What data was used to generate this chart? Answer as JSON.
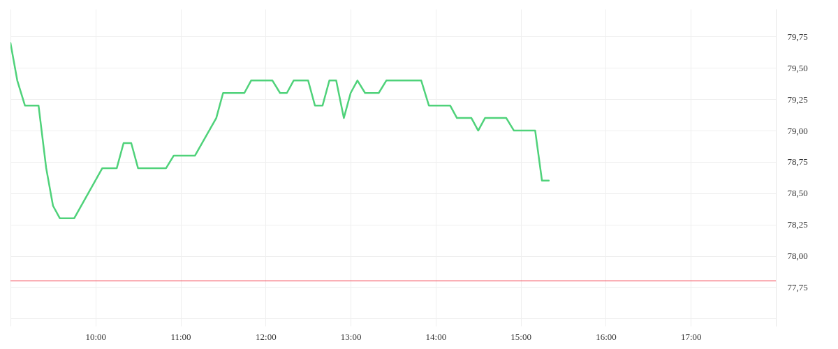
{
  "chart_data": {
    "type": "line",
    "x": [
      9.0,
      9.08,
      9.17,
      9.33,
      9.42,
      9.5,
      9.58,
      9.75,
      10.08,
      10.25,
      10.33,
      10.42,
      10.5,
      10.83,
      10.92,
      11.17,
      11.42,
      11.5,
      11.75,
      11.83,
      12.08,
      12.17,
      12.25,
      12.33,
      12.5,
      12.58,
      12.67,
      12.75,
      12.83,
      12.92,
      13.0,
      13.08,
      13.17,
      13.33,
      13.42,
      13.83,
      13.92,
      14.17,
      14.25,
      14.42,
      14.5,
      14.58,
      14.83,
      14.92,
      15.17,
      15.25,
      15.33
    ],
    "series": [
      {
        "color": "#4fd27a",
        "values": [
          79.7,
          79.4,
          79.2,
          79.2,
          78.7,
          78.4,
          78.3,
          78.3,
          78.7,
          78.7,
          78.9,
          78.9,
          78.7,
          78.7,
          78.8,
          78.8,
          79.1,
          79.3,
          79.3,
          79.4,
          79.4,
          79.3,
          79.3,
          79.4,
          79.4,
          79.2,
          79.2,
          79.4,
          79.4,
          79.1,
          79.3,
          79.4,
          79.3,
          79.3,
          79.4,
          79.4,
          79.2,
          79.2,
          79.1,
          79.1,
          79.0,
          79.1,
          79.1,
          79.0,
          79.0,
          78.6,
          78.6
        ]
      }
    ],
    "xlim": [
      9,
      18
    ],
    "xticks": [
      {
        "value": 9,
        "label": null
      },
      {
        "value": 10,
        "label": "10:00"
      },
      {
        "value": 11,
        "label": "11:00"
      },
      {
        "value": 12,
        "label": "12:00"
      },
      {
        "value": 13,
        "label": "13:00"
      },
      {
        "value": 14,
        "label": "14:00"
      },
      {
        "value": 15,
        "label": "15:00"
      },
      {
        "value": 16,
        "label": "16:00"
      },
      {
        "value": 17,
        "label": "17:00"
      },
      {
        "value": 18,
        "label": null
      }
    ],
    "ylim": [
      77.44,
      79.97
    ],
    "yticks": [
      {
        "value": 77.5,
        "label": null
      },
      {
        "value": 77.75,
        "label": "77,75"
      },
      {
        "value": 78.0,
        "label": "78,00"
      },
      {
        "value": 78.25,
        "label": "78,25"
      },
      {
        "value": 78.5,
        "label": "78,50"
      },
      {
        "value": 78.75,
        "label": "78,75"
      },
      {
        "value": 79.0,
        "label": "79,00"
      },
      {
        "value": 79.25,
        "label": "79,25"
      },
      {
        "value": 79.5,
        "label": "79,50"
      },
      {
        "value": 79.75,
        "label": "79,75"
      }
    ],
    "grid": true,
    "line_style": "solid",
    "ref_lines": [
      {
        "axis": "y",
        "value": 77.8,
        "color": "#f23645"
      }
    ]
  }
}
